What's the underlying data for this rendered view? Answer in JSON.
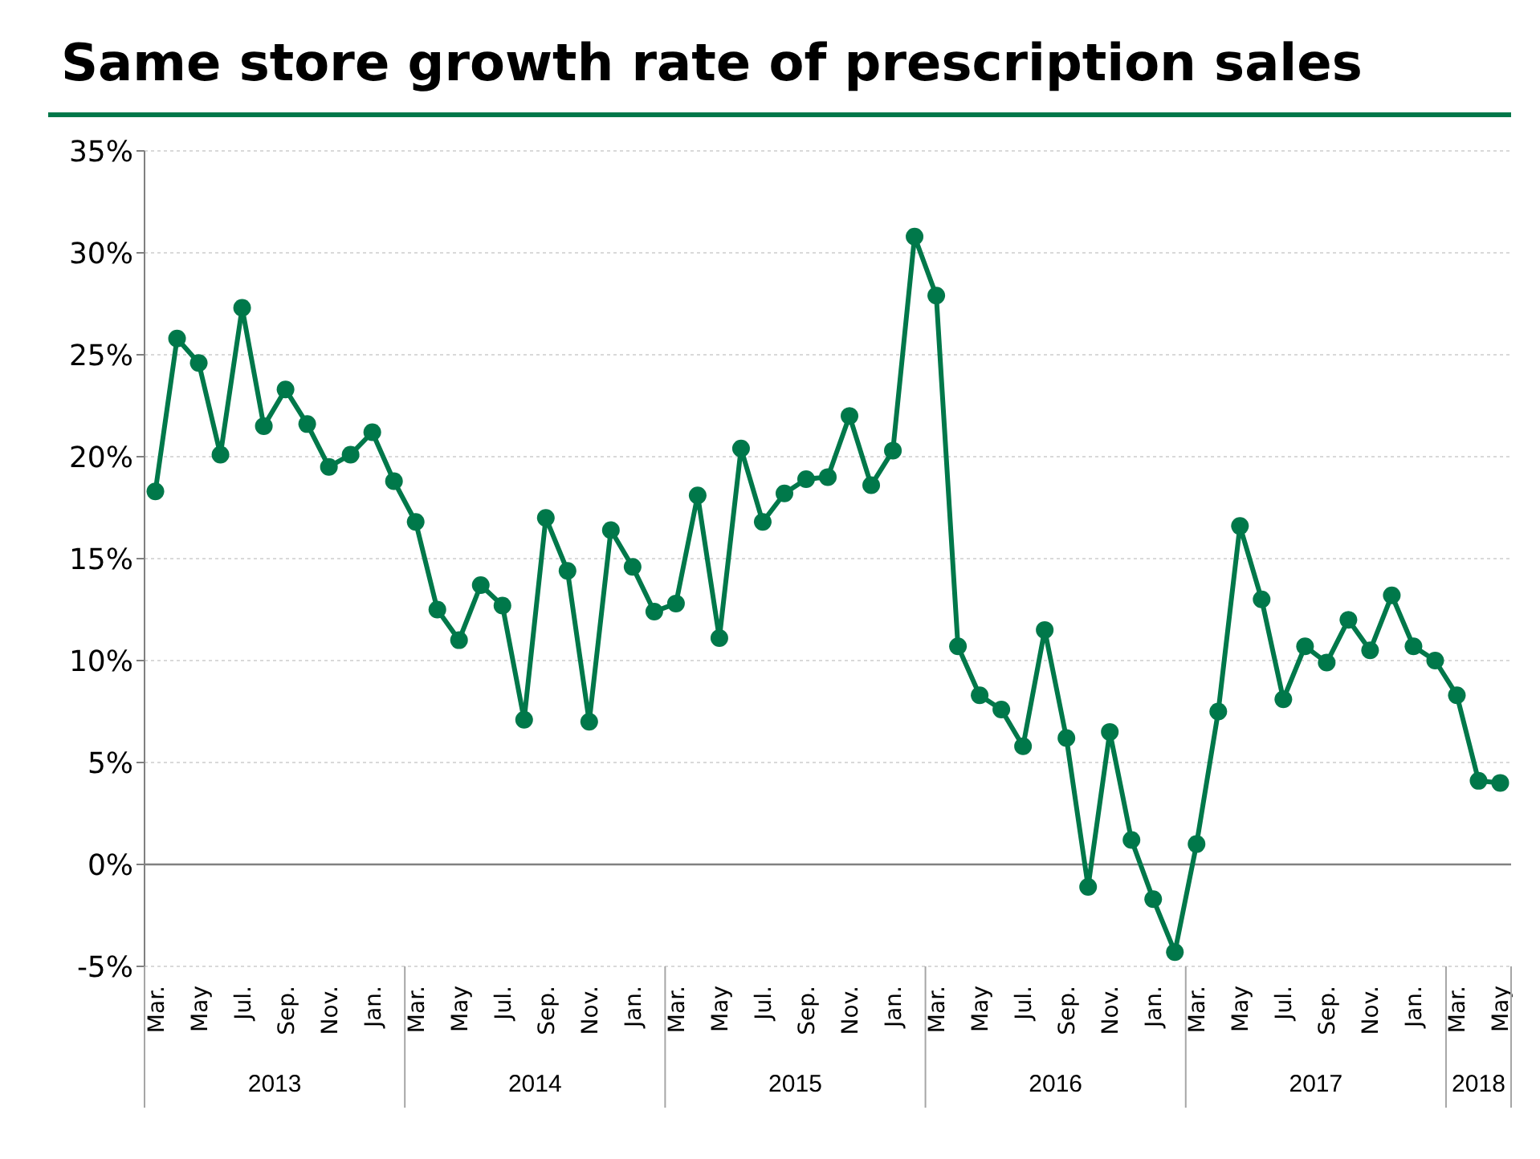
{
  "chart_data": {
    "type": "line",
    "title": "Same store growth rate of prescription sales",
    "categories": [
      "Mar.",
      null,
      "May",
      null,
      "Jul.",
      null,
      "Sep.",
      null,
      "Nov.",
      null,
      "Jan.",
      null,
      "Mar.",
      null,
      "May",
      null,
      "Jul.",
      null,
      "Sep.",
      null,
      "Nov.",
      null,
      "Jan.",
      null,
      "Mar.",
      null,
      "May",
      null,
      "Jul.",
      null,
      "Sep.",
      null,
      "Nov.",
      null,
      "Jan.",
      null,
      "Mar.",
      null,
      "May",
      null,
      "Jul.",
      null,
      "Sep.",
      null,
      "Nov.",
      null,
      "Jan.",
      null,
      "Mar.",
      null,
      "May",
      null,
      "Jul.",
      null,
      "Sep.",
      null,
      "Nov.",
      null,
      "Jan.",
      null,
      "Mar.",
      null,
      "May"
    ],
    "series": [
      {
        "color": "#00784a",
        "values": [
          18.3,
          25.8,
          24.6,
          20.1,
          27.3,
          21.5,
          23.3,
          21.6,
          19.5,
          20.1,
          21.2,
          18.8,
          16.8,
          12.5,
          11.0,
          13.7,
          12.7,
          7.1,
          17.0,
          14.4,
          7.0,
          16.4,
          14.6,
          12.4,
          12.8,
          18.1,
          11.1,
          20.4,
          16.8,
          18.2,
          18.9,
          19.0,
          22.0,
          18.6,
          20.3,
          30.8,
          27.9,
          10.7,
          8.3,
          7.6,
          5.8,
          11.5,
          6.2,
          -1.1,
          6.5,
          1.2,
          -1.7,
          -4.3,
          1.0,
          7.5,
          16.6,
          13.0,
          8.1,
          10.7,
          9.9,
          12.0,
          10.5,
          13.2,
          10.7,
          10.0,
          8.3,
          4.1,
          4.0
        ]
      }
    ],
    "annotations": [
      "2013",
      "2014",
      "2015",
      "2016",
      "2017",
      "2018"
    ],
    "ylim": [
      -5,
      35
    ],
    "yticks": [
      {
        "value": -5,
        "label": "-5%"
      },
      {
        "value": 0,
        "label": "0%"
      },
      {
        "value": 5,
        "label": "5%"
      },
      {
        "value": 10,
        "label": "10%"
      },
      {
        "value": 15,
        "label": "15%"
      },
      {
        "value": 20,
        "label": "20%"
      },
      {
        "value": 25,
        "label": "25%"
      },
      {
        "value": 30,
        "label": "30%"
      },
      {
        "value": 35,
        "label": "35%"
      }
    ],
    "ref_lines": [
      {
        "axis": "y",
        "value": 0,
        "color": "#808080"
      }
    ],
    "grid": "y",
    "marker": "circle",
    "line_style": "solid"
  }
}
